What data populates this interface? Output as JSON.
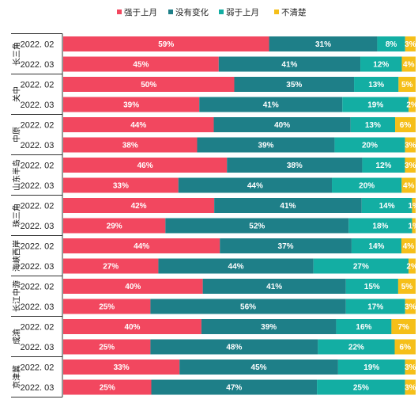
{
  "chart_data": {
    "type": "bar",
    "orientation": "horizontal",
    "stacked": true,
    "percent_stacked": true,
    "legend_position": "top",
    "grid": false,
    "categories": [
      {
        "group": "长三角",
        "period": "2022. 02"
      },
      {
        "group": "长三角",
        "period": "2022. 03"
      },
      {
        "group": "关中",
        "period": "2022. 02"
      },
      {
        "group": "关中",
        "period": "2022. 03"
      },
      {
        "group": "中原",
        "period": "2022. 02"
      },
      {
        "group": "中原",
        "period": "2022. 03"
      },
      {
        "group": "山东半岛",
        "period": "2022. 02"
      },
      {
        "group": "山东半岛",
        "period": "2022. 03"
      },
      {
        "group": "珠三角",
        "period": "2022. 02"
      },
      {
        "group": "珠三角",
        "period": "2022. 03"
      },
      {
        "group": "海峡西岸",
        "period": "2022. 02"
      },
      {
        "group": "海峡西岸",
        "period": "2022. 03"
      },
      {
        "group": "长江中游",
        "period": "2022. 02"
      },
      {
        "group": "长江中游",
        "period": "2022. 03"
      },
      {
        "group": "成渝",
        "period": "2022. 02"
      },
      {
        "group": "成渝",
        "period": "2022. 03"
      },
      {
        "group": "京津冀",
        "period": "2022. 02"
      },
      {
        "group": "京津冀",
        "period": "2022. 03"
      }
    ],
    "groups": [
      "长三角",
      "关中",
      "中原",
      "山东半岛",
      "珠三角",
      "海峡西岸",
      "长江中游",
      "成渝",
      "京津冀"
    ],
    "series": [
      {
        "name": "强于上月",
        "color": "#f2475f",
        "values": [
          59,
          45,
          50,
          39,
          44,
          38,
          46,
          33,
          42,
          29,
          44,
          27,
          40,
          25,
          40,
          25,
          33,
          25
        ]
      },
      {
        "name": "没有变化",
        "color": "#1e7f88",
        "values": [
          31,
          41,
          35,
          41,
          40,
          39,
          38,
          44,
          41,
          52,
          37,
          44,
          41,
          56,
          39,
          48,
          45,
          47
        ]
      },
      {
        "name": "弱于上月",
        "color": "#13aea3",
        "values": [
          8,
          12,
          13,
          19,
          13,
          20,
          12,
          20,
          14,
          18,
          14,
          27,
          15,
          17,
          16,
          22,
          19,
          25
        ]
      },
      {
        "name": "不清楚",
        "color": "#f5bf19",
        "values": [
          3,
          4,
          5,
          2,
          6,
          3,
          3,
          4,
          1,
          1,
          4,
          2,
          5,
          3,
          7,
          6,
          3,
          3
        ]
      }
    ],
    "value_suffix": "%",
    "xlim": [
      0,
      100
    ]
  }
}
